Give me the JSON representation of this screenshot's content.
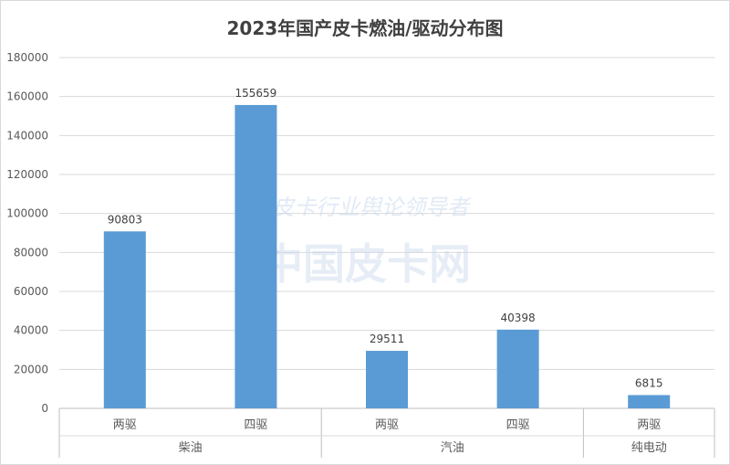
{
  "chart_data": {
    "type": "bar",
    "title": "2023年国产皮卡燃油/驱动分布图",
    "categories": [
      "两驱",
      "四驱",
      "两驱",
      "四驱",
      "两驱"
    ],
    "groups": [
      {
        "label": "柴油",
        "categories": [
          "两驱",
          "四驱"
        ]
      },
      {
        "label": "汽油",
        "categories": [
          "两驱",
          "四驱"
        ]
      },
      {
        "label": "纯电动",
        "categories": [
          "两驱"
        ]
      }
    ],
    "series": [
      {
        "values": [
          90803,
          155659,
          29511,
          40398,
          6815
        ],
        "color": "#5b9bd5"
      }
    ],
    "ylim": [
      0,
      180000
    ],
    "yticks": [
      0,
      20000,
      40000,
      60000,
      80000,
      100000,
      120000,
      140000,
      160000,
      180000
    ],
    "data_labels": [
      "90803",
      "155659",
      "29511",
      "40398",
      "6815"
    ],
    "grid": true,
    "watermark": [
      "皮卡行业舆论领导者",
      "中国皮卡网"
    ]
  }
}
